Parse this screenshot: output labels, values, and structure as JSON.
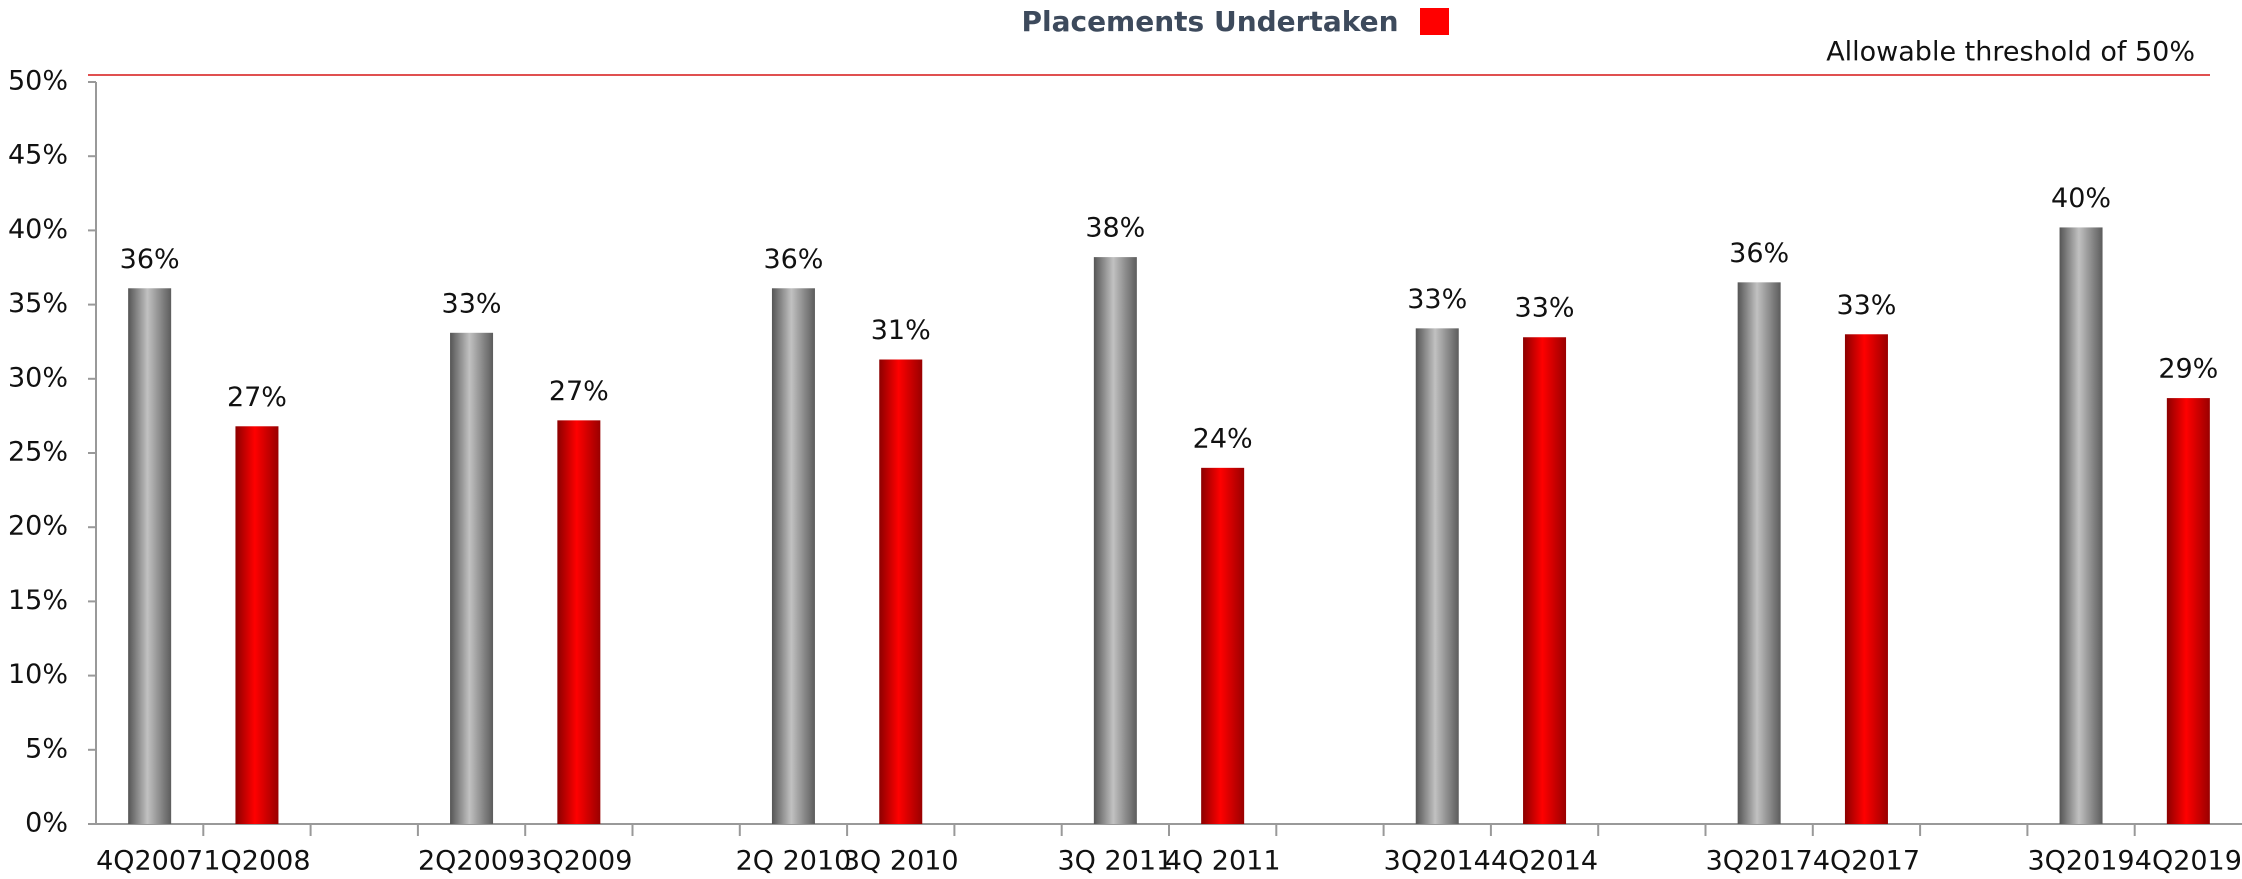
{
  "chart_data": {
    "type": "bar",
    "title": "Placements Undertaken",
    "legend_color": "#ff0000",
    "categories": [
      "4Q2007",
      "1Q2008",
      "2Q2009",
      "3Q2009",
      "2Q 2010",
      "3Q 2010",
      "3Q 2011",
      "4Q 2011",
      "3Q2014",
      "4Q2014",
      "3Q2017",
      "4Q2017",
      "3Q2019",
      "4Q2019"
    ],
    "values": [
      36.1,
      26.8,
      33.1,
      27.2,
      36.1,
      31.3,
      38.2,
      24.0,
      33.4,
      32.8,
      36.5,
      33.0,
      40.2,
      28.7
    ],
    "value_labels": [
      "36%",
      "27%",
      "33%",
      "27%",
      "36%",
      "31%",
      "38%",
      "24%",
      "33%",
      "33%",
      "36%",
      "33%",
      "40%",
      "29%"
    ],
    "colors": [
      "#9a9a9a",
      "#ff0000",
      "#9a9a9a",
      "#ff0000",
      "#9a9a9a",
      "#ff0000",
      "#9a9a9a",
      "#ff0000",
      "#9a9a9a",
      "#ff0000",
      "#9a9a9a",
      "#ff0000",
      "#9a9a9a",
      "#ff0000"
    ],
    "threshold": {
      "value": 50,
      "label": "Allowable threshold of 50%",
      "color": "#e05050"
    },
    "ylim": [
      0,
      50
    ],
    "yticks": [
      {
        "value": 0,
        "label": "0%"
      },
      {
        "value": 5,
        "label": "5%"
      },
      {
        "value": 10,
        "label": "10%"
      },
      {
        "value": 15,
        "label": "15%"
      },
      {
        "value": 20,
        "label": "20%"
      },
      {
        "value": 25,
        "label": "25%"
      },
      {
        "value": 30,
        "label": "30%"
      },
      {
        "value": 35,
        "label": "35%"
      },
      {
        "value": 40,
        "label": "40%"
      },
      {
        "value": 45,
        "label": "45%"
      },
      {
        "value": 50,
        "label": "50%"
      }
    ]
  }
}
